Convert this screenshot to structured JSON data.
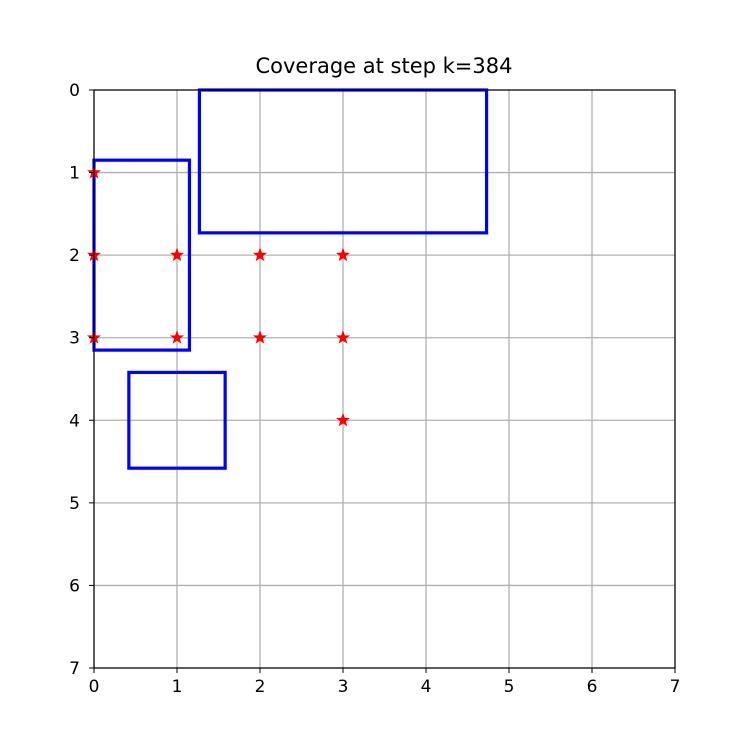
{
  "chart_data": {
    "type": "scatter",
    "title": "Coverage at step k=384",
    "xlabel": "",
    "ylabel": "",
    "xlim": [
      0,
      7
    ],
    "ylim": [
      7,
      0
    ],
    "y_axis_inverted": true,
    "grid": true,
    "x_ticks": [
      "0",
      "1",
      "2",
      "3",
      "4",
      "5",
      "6",
      "7"
    ],
    "y_ticks": [
      "0",
      "1",
      "2",
      "3",
      "4",
      "5",
      "6",
      "7"
    ],
    "points": [
      {
        "x": 0,
        "y": 1
      },
      {
        "x": 0,
        "y": 2
      },
      {
        "x": 0,
        "y": 3
      },
      {
        "x": 1,
        "y": 2
      },
      {
        "x": 1,
        "y": 3
      },
      {
        "x": 2,
        "y": 2
      },
      {
        "x": 2,
        "y": 3
      },
      {
        "x": 3,
        "y": 2
      },
      {
        "x": 3,
        "y": 3
      },
      {
        "x": 3,
        "y": 4
      }
    ],
    "marker": "star",
    "marker_color": "#ff0000",
    "rectangles": [
      {
        "x0": 1.27,
        "x1": 4.73,
        "y0": 0,
        "y1": 1.73
      },
      {
        "x0": 0,
        "x1": 1.15,
        "y0": 0.85,
        "y1": 3.15
      },
      {
        "x0": 0.42,
        "x1": 1.58,
        "y0": 3.42,
        "y1": 4.58
      }
    ],
    "rectangle_color": "#0000ff",
    "grid_color": "#b0b0b0"
  }
}
